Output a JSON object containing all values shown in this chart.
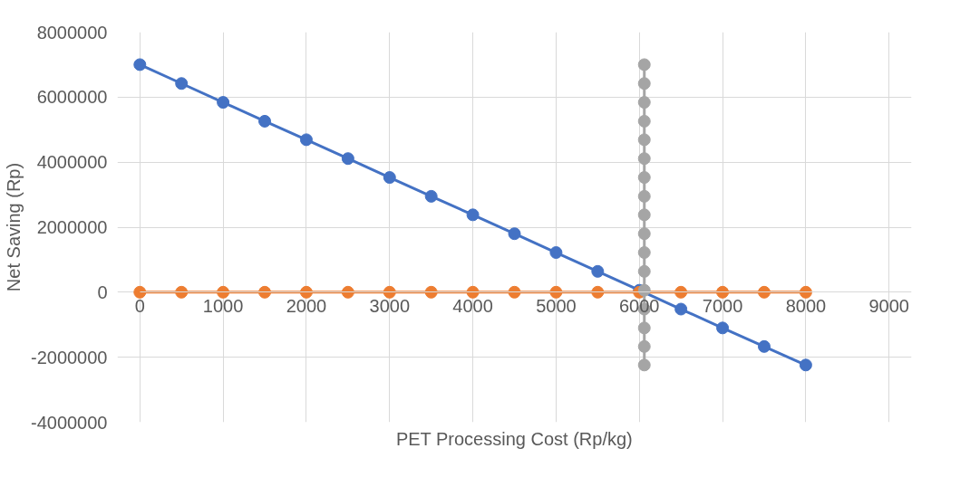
{
  "chart_data": {
    "type": "line",
    "xlabel": "PET Processing Cost (Rp/kg)",
    "ylabel": "Net Saving (Rp)",
    "xlim": [
      0,
      9000
    ],
    "xticks": [
      0,
      1000,
      2000,
      3000,
      4000,
      5000,
      6000,
      7000,
      8000,
      9000
    ],
    "ylim": [
      -4000000,
      8000000
    ],
    "yticks": [
      -4000000,
      -2000000,
      0,
      2000000,
      4000000,
      6000000,
      8000000
    ],
    "grid": true,
    "marker": "circle",
    "line_style": "solid",
    "series": [
      {
        "color": "#4472c4",
        "x": [
          0,
          500,
          1000,
          1500,
          2000,
          2500,
          3000,
          3500,
          4000,
          4500,
          5000,
          5500,
          6000,
          6500,
          7000,
          7500,
          8000
        ],
        "values": [
          7000000,
          6420000,
          5840000,
          5260000,
          4690000,
          4110000,
          3530000,
          2950000,
          2380000,
          1800000,
          1220000,
          640000,
          60000,
          -520000,
          -1100000,
          -1670000,
          -2240000
        ]
      },
      {
        "color": "#ed7d31",
        "x": [
          0,
          500,
          1000,
          1500,
          2000,
          2500,
          3000,
          3500,
          4000,
          4500,
          5000,
          5500,
          6000,
          6500,
          7000,
          7500,
          8000
        ],
        "values": [
          0,
          0,
          0,
          0,
          0,
          0,
          0,
          0,
          0,
          0,
          0,
          0,
          0,
          0,
          0,
          0,
          0
        ]
      },
      {
        "color": "#a5a5a5",
        "x": [
          6060,
          6060,
          6060,
          6060,
          6060,
          6060,
          6060,
          6060,
          6060,
          6060,
          6060,
          6060,
          6060,
          6060,
          6060,
          6060,
          6060
        ],
        "values": [
          7000000,
          6420000,
          5840000,
          5260000,
          4690000,
          4110000,
          3530000,
          2950000,
          2380000,
          1800000,
          1220000,
          640000,
          60000,
          -520000,
          -1100000,
          -1670000,
          -2240000
        ]
      }
    ]
  }
}
